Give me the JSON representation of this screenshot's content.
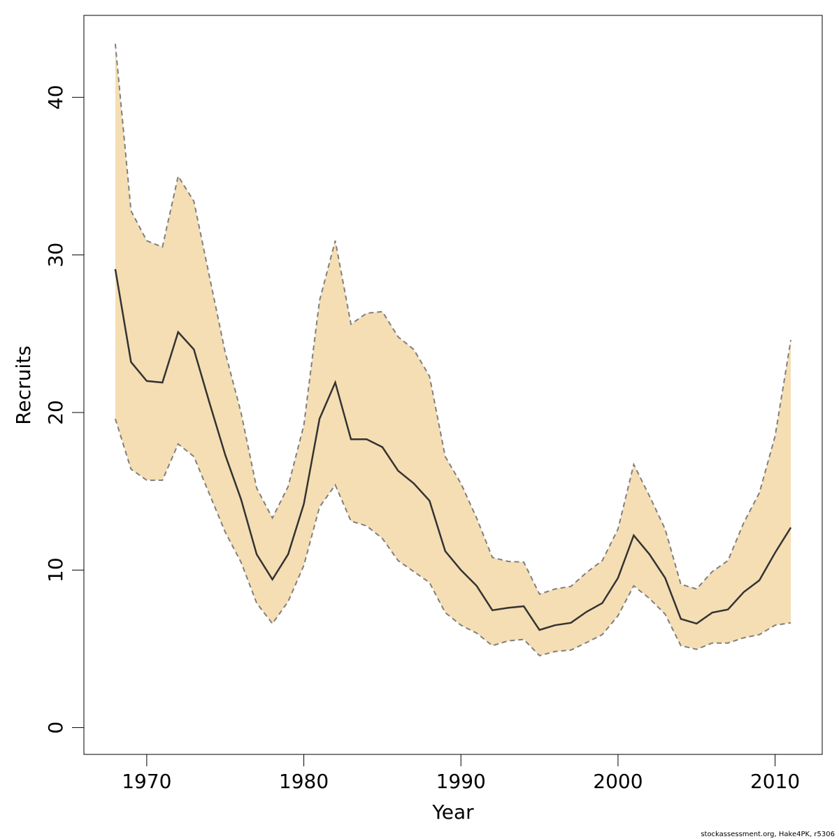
{
  "chart_data": {
    "type": "area",
    "xlabel": "Year",
    "ylabel": "Recruits",
    "xlim": [
      1966,
      2013
    ],
    "ylim": [
      -1.7,
      45.2
    ],
    "xticks": [
      1970,
      1980,
      1990,
      2000,
      2010
    ],
    "yticks": [
      0,
      10,
      20,
      30,
      40
    ],
    "grid": false,
    "colors": {
      "band": "#f5deb3",
      "median": "#333333",
      "bounds": "#7f7f7f"
    },
    "x": [
      1968,
      1969,
      1970,
      1971,
      1972,
      1973,
      1974,
      1975,
      1976,
      1977,
      1978,
      1979,
      1980,
      1981,
      1982,
      1983,
      1984,
      1985,
      1986,
      1987,
      1988,
      1989,
      1990,
      1991,
      1992,
      1993,
      1994,
      1995,
      1996,
      1997,
      1998,
      1999,
      2000,
      2001,
      2002,
      2003,
      2004,
      2005,
      2006,
      2007,
      2008,
      2009,
      2010,
      2011
    ],
    "series": [
      {
        "role": "median",
        "values": [
          29.1,
          23.2,
          22.0,
          21.9,
          25.1,
          24.0,
          20.6,
          17.3,
          14.5,
          11.0,
          9.4,
          11.0,
          14.2,
          19.6,
          21.9,
          18.3,
          18.3,
          17.8,
          16.3,
          15.5,
          14.4,
          11.2,
          10.0,
          9.0,
          7.45,
          7.6,
          7.7,
          6.2,
          6.5,
          6.65,
          7.35,
          7.9,
          9.5,
          12.2,
          11.0,
          9.5,
          6.9,
          6.6,
          7.3,
          7.5,
          8.6,
          9.35,
          11.1,
          12.7
        ]
      },
      {
        "role": "upper",
        "values": [
          43.4,
          32.8,
          30.9,
          30.5,
          35.0,
          33.4,
          28.6,
          23.8,
          20.0,
          15.2,
          13.3,
          15.3,
          19.2,
          27.1,
          30.9,
          25.6,
          26.3,
          26.4,
          24.8,
          24.0,
          22.3,
          17.2,
          15.5,
          13.3,
          10.8,
          10.55,
          10.5,
          8.47,
          8.8,
          8.96,
          9.85,
          10.6,
          12.6,
          16.7,
          14.7,
          12.6,
          9.1,
          8.8,
          9.9,
          10.6,
          13.0,
          14.9,
          18.5,
          24.6
        ]
      },
      {
        "role": "lower",
        "values": [
          19.6,
          16.4,
          15.7,
          15.7,
          18.0,
          17.2,
          14.8,
          12.4,
          10.5,
          7.9,
          6.6,
          8.0,
          10.3,
          14.0,
          15.4,
          13.1,
          12.8,
          12.0,
          10.6,
          9.9,
          9.2,
          7.3,
          6.5,
          6.0,
          5.2,
          5.5,
          5.6,
          4.57,
          4.83,
          4.92,
          5.4,
          5.9,
          7.1,
          9.0,
          8.2,
          7.2,
          5.2,
          4.97,
          5.37,
          5.37,
          5.7,
          5.9,
          6.5,
          6.65
        ]
      }
    ]
  },
  "footer": "stockassessment.org, Hake4PK, r5306"
}
